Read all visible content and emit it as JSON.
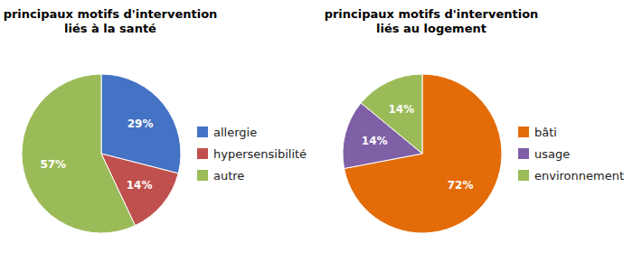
{
  "chart_data": [
    {
      "type": "pie",
      "title": "principaux motifs d'intervention\nliés à la santé",
      "categories": [
        "allergie",
        "hypersensibilité",
        "autre"
      ],
      "values": [
        29,
        14,
        57
      ],
      "value_labels": [
        "29%",
        "14%",
        "57%"
      ],
      "colors": [
        "#4472C4",
        "#C0504D",
        "#9BBB59"
      ],
      "data_labels": true,
      "legend": "right"
    },
    {
      "type": "pie",
      "title": "principaux motifs d'intervention\nliés au logement",
      "categories": [
        "bâti",
        "usage",
        "environnement"
      ],
      "values": [
        72,
        14,
        14
      ],
      "value_labels": [
        "72%",
        "14%",
        "14%"
      ],
      "colors": [
        "#E36C09",
        "#7F5FA6",
        "#9BBB59"
      ],
      "data_labels": true,
      "legend": "right"
    }
  ]
}
